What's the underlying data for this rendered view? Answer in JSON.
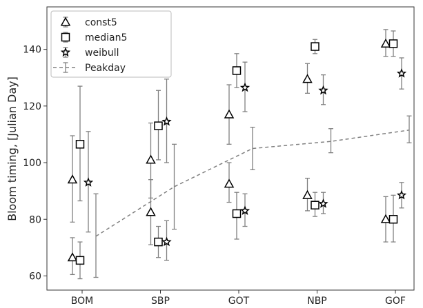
{
  "chart_data": {
    "type": "scatter",
    "title": "",
    "xlabel": "",
    "ylabel": "Bloom timing, [Julian Day]",
    "categories": [
      "BOM",
      "SBP",
      "GOT",
      "NBP",
      "GOF"
    ],
    "ylim": [
      55,
      155
    ],
    "yticks": [
      60,
      80,
      100,
      120,
      140
    ],
    "grid": false,
    "legend_position": "top-left",
    "series": [
      {
        "name": "const5",
        "marker": "triangle",
        "points": [
          {
            "category": "BOM",
            "y": 66.5,
            "low": 60.5,
            "high": 73.5
          },
          {
            "category": "BOM",
            "y": 94.0,
            "low": 79.0,
            "high": 109.5
          },
          {
            "category": "SBP",
            "y": 82.5,
            "low": 71.0,
            "high": 94.0
          },
          {
            "category": "SBP",
            "y": 101.0,
            "low": 87.5,
            "high": 114.0
          },
          {
            "category": "GOT",
            "y": 92.5,
            "low": 86.0,
            "high": 100.0
          },
          {
            "category": "GOT",
            "y": 117.0,
            "low": 106.5,
            "high": 127.5
          },
          {
            "category": "NBP",
            "y": 88.5,
            "low": 83.0,
            "high": 94.5
          },
          {
            "category": "NBP",
            "y": 129.5,
            "low": 124.5,
            "high": 135.0
          },
          {
            "category": "GOF",
            "y": 80.0,
            "low": 72.0,
            "high": 88.0
          },
          {
            "category": "GOF",
            "y": 142.0,
            "low": 137.5,
            "high": 147.0
          }
        ]
      },
      {
        "name": "median5",
        "marker": "square",
        "points": [
          {
            "category": "BOM",
            "y": 65.5,
            "low": 59.0,
            "high": 72.0
          },
          {
            "category": "BOM",
            "y": 106.5,
            "low": 86.5,
            "high": 127.0
          },
          {
            "category": "SBP",
            "y": 72.0,
            "low": 66.5,
            "high": 77.5
          },
          {
            "category": "SBP",
            "y": 113.0,
            "low": 101.0,
            "high": 125.5
          },
          {
            "category": "GOT",
            "y": 82.0,
            "low": 73.0,
            "high": 89.5
          },
          {
            "category": "GOT",
            "y": 132.5,
            "low": 126.5,
            "high": 138.5
          },
          {
            "category": "NBP",
            "y": 85.0,
            "low": 81.0,
            "high": 89.5
          },
          {
            "category": "NBP",
            "y": 141.0,
            "low": 138.5,
            "high": 143.5
          },
          {
            "category": "GOF",
            "y": 80.0,
            "low": 72.0,
            "high": 88.5
          },
          {
            "category": "GOF",
            "y": 142.0,
            "low": 137.5,
            "high": 146.5
          }
        ]
      },
      {
        "name": "weibull",
        "marker": "star",
        "points": [
          {
            "category": "BOM",
            "y": 93.0,
            "low": 75.5,
            "high": 111.0
          },
          {
            "category": "SBP",
            "y": 72.0,
            "low": 65.5,
            "high": 79.5
          },
          {
            "category": "SBP",
            "y": 114.5,
            "low": 100.0,
            "high": 129.5
          },
          {
            "category": "GOT",
            "y": 83.0,
            "low": 77.5,
            "high": 89.0
          },
          {
            "category": "GOT",
            "y": 126.5,
            "low": 118.0,
            "high": 135.5
          },
          {
            "category": "NBP",
            "y": 85.5,
            "low": 82.0,
            "high": 89.5
          },
          {
            "category": "NBP",
            "y": 125.5,
            "low": 120.5,
            "high": 131.0
          },
          {
            "category": "GOF",
            "y": 88.5,
            "low": 84.0,
            "high": 93.0
          },
          {
            "category": "GOF",
            "y": 131.5,
            "low": 126.0,
            "high": 137.0
          }
        ]
      },
      {
        "name": "Peakday",
        "marker": "dashed-line",
        "values": [
          74.0,
          91.5,
          105.0,
          107.5,
          111.5
        ],
        "low": [
          59.5,
          76.5,
          97.5,
          103.5,
          107.0
        ],
        "high": [
          89.0,
          106.5,
          112.5,
          112.0,
          116.5
        ]
      }
    ],
    "colors": {
      "marker": "#000000",
      "errorbar": "#808080",
      "peakday_line": "#808080"
    }
  }
}
